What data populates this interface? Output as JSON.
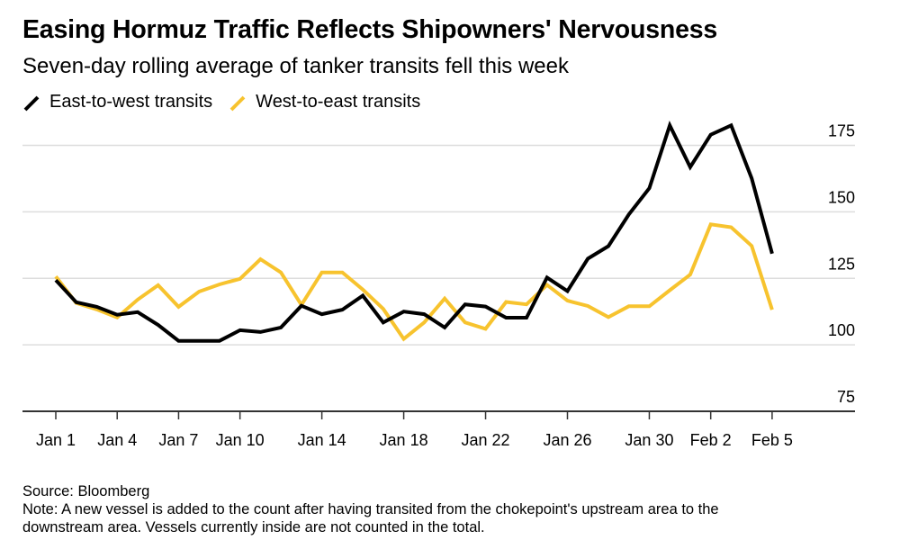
{
  "chart_data": {
    "type": "line",
    "title": "Easing Hormuz Traffic Reflects Shipowners' Nervousness",
    "subtitle": "Seven-day rolling average of tanker transits fell this week",
    "xlabel": "",
    "ylabel": "",
    "ylim": [
      75,
      185
    ],
    "yticks": [
      75,
      100,
      125,
      150,
      175
    ],
    "ytick_labels": [
      "75",
      "100",
      "125",
      "150",
      "175"
    ],
    "grid": true,
    "legend_position": "top-left",
    "x_start": "Jan 1",
    "x_end": "Feb 5",
    "xticks": [
      {
        "day": 0,
        "label": "Jan 1"
      },
      {
        "day": 3,
        "label": "Jan 4"
      },
      {
        "day": 6,
        "label": "Jan 7"
      },
      {
        "day": 9,
        "label": "Jan 10"
      },
      {
        "day": 13,
        "label": "Jan 14"
      },
      {
        "day": 17,
        "label": "Jan 18"
      },
      {
        "day": 21,
        "label": "Jan 22"
      },
      {
        "day": 25,
        "label": "Jan 26"
      },
      {
        "day": 29,
        "label": "Jan 30"
      },
      {
        "day": 32,
        "label": "Feb 2"
      },
      {
        "day": 35,
        "label": "Feb 5"
      }
    ],
    "x_days_max": 39,
    "series": [
      {
        "name": "East-to-west transits",
        "color": "#000000",
        "values": [
          124.3,
          116,
          114.3,
          111.3,
          112.3,
          107.5,
          101.5,
          101.5,
          101.5,
          105.5,
          104.8,
          106.5,
          114.7,
          111.5,
          113.2,
          118.5,
          108.4,
          112.5,
          111.5,
          106.5,
          115.2,
          114.4,
          110.2,
          110.2,
          125.3,
          120.2,
          132.4,
          137.1,
          149,
          158.9,
          182.5,
          166.8,
          179,
          182.5,
          162.6,
          134.3
        ]
      },
      {
        "name": "West-to-east transits",
        "color": "#F7C32E",
        "values": [
          125.7,
          115.7,
          113.3,
          110.3,
          117,
          122.4,
          114.3,
          120,
          122.7,
          124.8,
          132.2,
          127.2,
          115,
          127.2,
          127.2,
          120.8,
          113.5,
          102.2,
          108.4,
          117.4,
          108.4,
          106,
          116.1,
          115.2,
          122.5,
          116.6,
          114.6,
          110.4,
          114.5,
          114.5,
          120.5,
          126.4,
          145.3,
          144.2,
          137.2,
          113.2
        ]
      }
    ],
    "source": "Source: Bloomberg",
    "note_line1": "Note: A new vessel is added to the count after having transited from the chokepoint's upstream area to the",
    "note_line2": "downstream area. Vessels currently inside are not counted in the total."
  },
  "colors": {
    "east_to_west": "#000000",
    "west_to_east": "#F7C32E",
    "grid": "#dddddd",
    "axis": "#333333"
  }
}
